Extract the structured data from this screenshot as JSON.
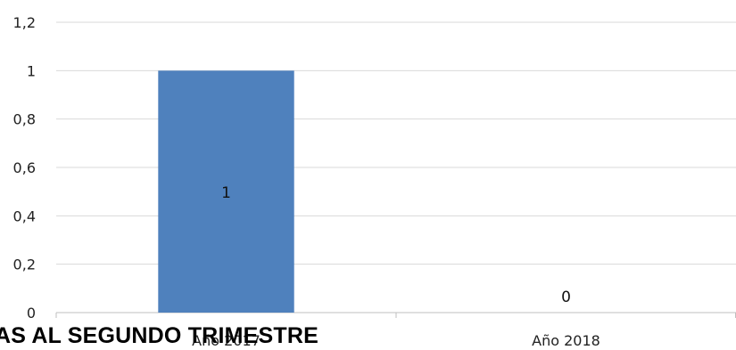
{
  "overlay_text": "AS AL SEGUNDO TRIMESTRE",
  "chart_data": {
    "type": "bar",
    "categories": [
      "Año 2017",
      "Año 2018"
    ],
    "values": [
      1,
      0
    ],
    "data_labels": [
      "1",
      "0"
    ],
    "yticks": [
      "0",
      "0,2",
      "0,4",
      "0,6",
      "0,8",
      "1",
      "1,2"
    ],
    "ylim": [
      0,
      1.2
    ],
    "grid": true,
    "bar_color": "#4f81bd",
    "grid_color": "#d9d9d9"
  }
}
